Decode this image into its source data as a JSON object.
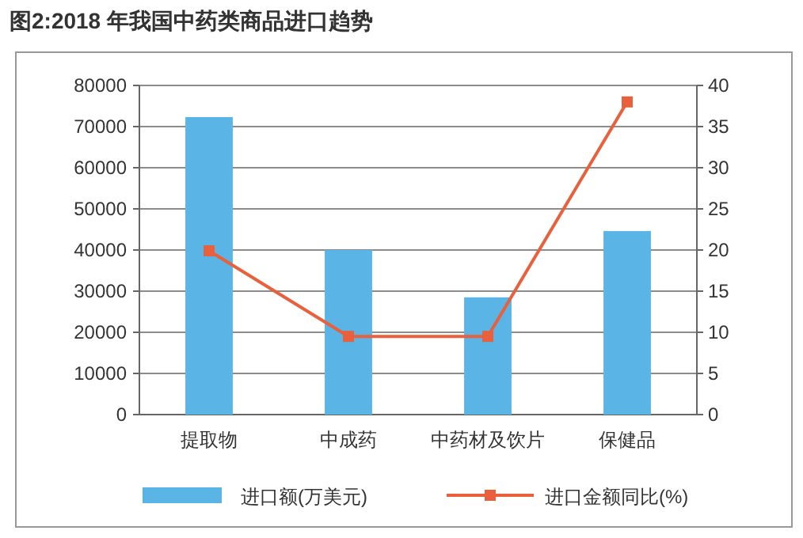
{
  "chart_data": {
    "type": "bar",
    "title": "图2:2018 年我国中药类商品进口趋势",
    "categories": [
      "提取物",
      "中成药",
      "中药材及饮片",
      "保健品"
    ],
    "series": [
      {
        "name": "进口额(万美元)",
        "color": "#5ab4e5",
        "values": [
          72300,
          40000,
          28500,
          44600
        ]
      },
      {
        "name": "进口金额同比(%)",
        "type": "line",
        "axis": "y2",
        "color": "#e8603c",
        "marker": "square",
        "values": [
          19.9,
          9.5,
          9.5,
          38.0
        ]
      }
    ],
    "ylim": [
      0,
      80000
    ],
    "yticks": [
      0,
      10000,
      20000,
      30000,
      40000,
      50000,
      60000,
      70000,
      80000
    ],
    "y2lim": [
      0,
      40
    ],
    "y2ticks": [
      0,
      5,
      10,
      15,
      20,
      25,
      30,
      35,
      40
    ],
    "grid": "y",
    "legend": "bottom"
  }
}
